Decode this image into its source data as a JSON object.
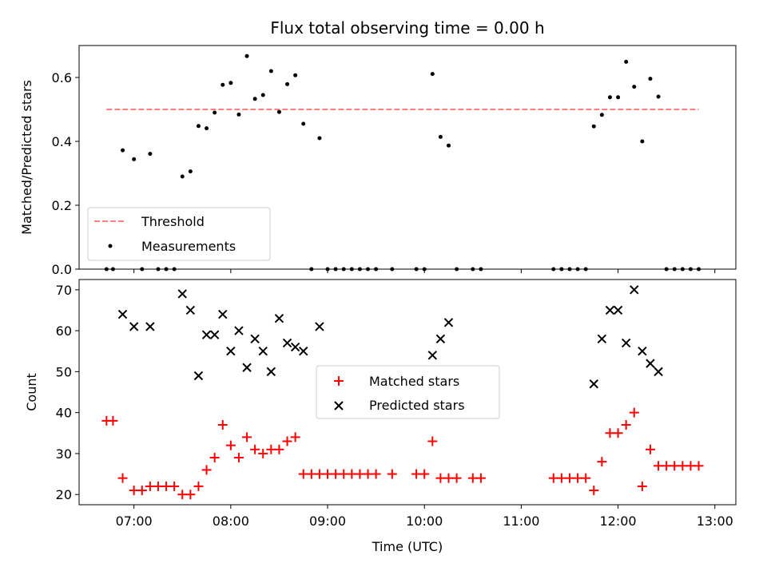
{
  "chart_data": [
    {
      "type": "scatter",
      "title": "Flux total observing time = 0.00 h",
      "xlabel": "",
      "ylabel": "Matched/Predicted stars",
      "xlim": [
        "06:26",
        "13:13"
      ],
      "ylim": [
        0,
        0.7
      ],
      "y_ticks": [
        "0.0",
        "0.2",
        "0.4",
        "0.6"
      ],
      "legend": {
        "placement": "lower-left",
        "entries": [
          "Threshold",
          "Measurements"
        ]
      },
      "threshold": {
        "name": "Threshold",
        "value": 0.5,
        "x_start": "06:43",
        "x_end": "12:50",
        "color": "#ff7f7f",
        "style": "dashed"
      },
      "series": [
        {
          "name": "Measurements",
          "color": "#000000",
          "marker": "dot",
          "points": [
            [
              "06:43",
              0.0
            ],
            [
              "06:47",
              0.0
            ],
            [
              "06:53",
              0.372
            ],
            [
              "07:00",
              0.344
            ],
            [
              "07:05",
              0.0
            ],
            [
              "07:10",
              0.361
            ],
            [
              "07:15",
              0.0
            ],
            [
              "07:20",
              0.0
            ],
            [
              "07:25",
              0.0
            ],
            [
              "07:30",
              0.29
            ],
            [
              "07:35",
              0.306
            ],
            [
              "07:40",
              0.448
            ],
            [
              "07:45",
              0.441
            ],
            [
              "07:50",
              0.49
            ],
            [
              "07:55",
              0.577
            ],
            [
              "08:00",
              0.583
            ],
            [
              "08:05",
              0.484
            ],
            [
              "08:10",
              0.667
            ],
            [
              "08:15",
              0.533
            ],
            [
              "08:20",
              0.545
            ],
            [
              "08:25",
              0.62
            ],
            [
              "08:30",
              0.492
            ],
            [
              "08:35",
              0.579
            ],
            [
              "08:40",
              0.607
            ],
            [
              "08:45",
              0.455
            ],
            [
              "08:50",
              0.0
            ],
            [
              "08:55",
              0.41
            ],
            [
              "09:00",
              0.0
            ],
            [
              "09:05",
              0.0
            ],
            [
              "09:10",
              0.0
            ],
            [
              "09:15",
              0.0
            ],
            [
              "09:20",
              0.0
            ],
            [
              "09:25",
              0.0
            ],
            [
              "09:30",
              0.0
            ],
            [
              "09:40",
              0.0
            ],
            [
              "09:55",
              0.0
            ],
            [
              "10:00",
              0.0
            ],
            [
              "10:05",
              0.611
            ],
            [
              "10:10",
              0.414
            ],
            [
              "10:15",
              0.387
            ],
            [
              "10:20",
              0.0
            ],
            [
              "10:30",
              0.0
            ],
            [
              "10:35",
              0.0
            ],
            [
              "11:20",
              0.0
            ],
            [
              "11:25",
              0.0
            ],
            [
              "11:30",
              0.0
            ],
            [
              "11:35",
              0.0
            ],
            [
              "11:40",
              0.0
            ],
            [
              "11:45",
              0.447
            ],
            [
              "11:50",
              0.483
            ],
            [
              "11:55",
              0.538
            ],
            [
              "12:00",
              0.538
            ],
            [
              "12:05",
              0.649
            ],
            [
              "12:10",
              0.571
            ],
            [
              "12:15",
              0.4
            ],
            [
              "12:20",
              0.596
            ],
            [
              "12:25",
              0.54
            ],
            [
              "12:30",
              0.0
            ],
            [
              "12:35",
              0.0
            ],
            [
              "12:40",
              0.0
            ],
            [
              "12:45",
              0.0
            ],
            [
              "12:50",
              0.0
            ]
          ]
        }
      ]
    },
    {
      "type": "scatter",
      "title": "",
      "xlabel": "Time (UTC)",
      "ylabel": "Count",
      "xlim": [
        "06:26",
        "13:13"
      ],
      "ylim": [
        17.5,
        72.5
      ],
      "x_ticks": [
        "07:00",
        "08:00",
        "09:00",
        "10:00",
        "11:00",
        "12:00",
        "13:00"
      ],
      "y_ticks": [
        "20",
        "30",
        "40",
        "50",
        "60",
        "70"
      ],
      "legend": {
        "placement": "center",
        "entries": [
          "Matched stars",
          "Predicted stars"
        ]
      },
      "series": [
        {
          "name": "Matched stars",
          "color": "#ff0000",
          "marker": "plus",
          "points": [
            [
              "06:43",
              38
            ],
            [
              "06:47",
              38
            ],
            [
              "06:53",
              24
            ],
            [
              "07:00",
              21
            ],
            [
              "07:05",
              21
            ],
            [
              "07:10",
              22
            ],
            [
              "07:15",
              22
            ],
            [
              "07:20",
              22
            ],
            [
              "07:25",
              22
            ],
            [
              "07:30",
              20
            ],
            [
              "07:35",
              20
            ],
            [
              "07:40",
              22
            ],
            [
              "07:45",
              26
            ],
            [
              "07:50",
              29
            ],
            [
              "07:55",
              37
            ],
            [
              "08:00",
              32
            ],
            [
              "08:05",
              29
            ],
            [
              "08:10",
              34
            ],
            [
              "08:15",
              31
            ],
            [
              "08:20",
              30
            ],
            [
              "08:25",
              31
            ],
            [
              "08:30",
              31
            ],
            [
              "08:35",
              33
            ],
            [
              "08:40",
              34
            ],
            [
              "08:45",
              25
            ],
            [
              "08:50",
              25
            ],
            [
              "08:55",
              25
            ],
            [
              "09:00",
              25
            ],
            [
              "09:05",
              25
            ],
            [
              "09:10",
              25
            ],
            [
              "09:15",
              25
            ],
            [
              "09:20",
              25
            ],
            [
              "09:25",
              25
            ],
            [
              "09:30",
              25
            ],
            [
              "09:40",
              25
            ],
            [
              "09:55",
              25
            ],
            [
              "10:00",
              25
            ],
            [
              "10:05",
              33
            ],
            [
              "10:10",
              24
            ],
            [
              "10:15",
              24
            ],
            [
              "10:20",
              24
            ],
            [
              "10:30",
              24
            ],
            [
              "10:35",
              24
            ],
            [
              "11:20",
              24
            ],
            [
              "11:25",
              24
            ],
            [
              "11:30",
              24
            ],
            [
              "11:35",
              24
            ],
            [
              "11:40",
              24
            ],
            [
              "11:45",
              21
            ],
            [
              "11:50",
              28
            ],
            [
              "11:55",
              35
            ],
            [
              "12:00",
              35
            ],
            [
              "12:05",
              37
            ],
            [
              "12:10",
              40
            ],
            [
              "12:15",
              22
            ],
            [
              "12:20",
              31
            ],
            [
              "12:25",
              27
            ],
            [
              "12:30",
              27
            ],
            [
              "12:35",
              27
            ],
            [
              "12:40",
              27
            ],
            [
              "12:45",
              27
            ],
            [
              "12:50",
              27
            ]
          ]
        },
        {
          "name": "Predicted stars",
          "color": "#000000",
          "marker": "x",
          "points": [
            [
              "06:53",
              64
            ],
            [
              "07:00",
              61
            ],
            [
              "07:10",
              61
            ],
            [
              "07:30",
              69
            ],
            [
              "07:35",
              65
            ],
            [
              "07:40",
              49
            ],
            [
              "07:45",
              59
            ],
            [
              "07:50",
              59
            ],
            [
              "07:55",
              64
            ],
            [
              "08:00",
              55
            ],
            [
              "08:05",
              60
            ],
            [
              "08:10",
              51
            ],
            [
              "08:15",
              58
            ],
            [
              "08:20",
              55
            ],
            [
              "08:25",
              50
            ],
            [
              "08:30",
              63
            ],
            [
              "08:35",
              57
            ],
            [
              "08:40",
              56
            ],
            [
              "08:45",
              55
            ],
            [
              "08:55",
              61
            ],
            [
              "10:05",
              54
            ],
            [
              "10:10",
              58
            ],
            [
              "10:15",
              62
            ],
            [
              "11:45",
              47
            ],
            [
              "11:50",
              58
            ],
            [
              "11:55",
              65
            ],
            [
              "12:00",
              65
            ],
            [
              "12:05",
              57
            ],
            [
              "12:10",
              70
            ],
            [
              "12:15",
              55
            ],
            [
              "12:20",
              52
            ],
            [
              "12:25",
              50
            ]
          ]
        }
      ]
    }
  ]
}
